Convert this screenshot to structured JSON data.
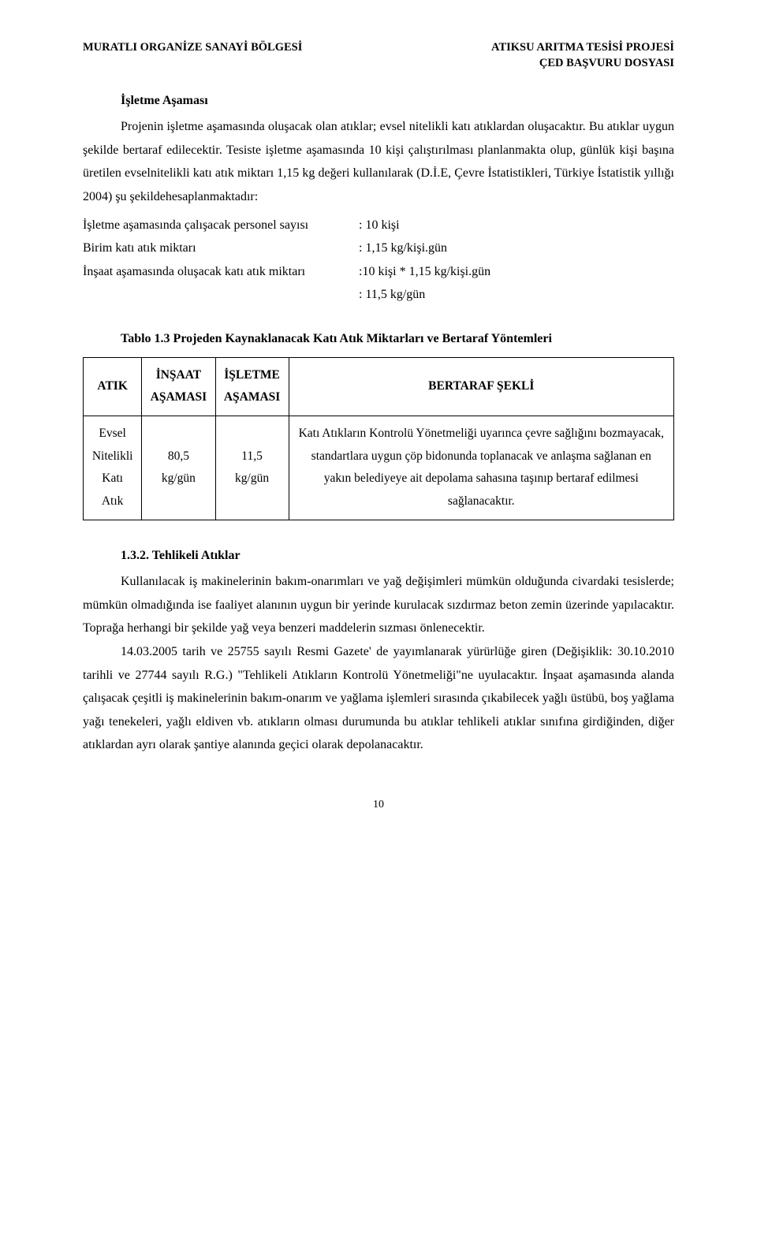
{
  "header": {
    "left": "MURATLI ORGANİZE SANAYİ BÖLGESİ",
    "right_line1": "ATIKSU ARITMA TESİSİ PROJESİ",
    "right_line2": "ÇED BAŞVURU DOSYASI"
  },
  "section1": {
    "title": "İşletme Aşaması",
    "p1": "Projenin işletme aşamasında oluşacak olan atıklar; evsel nitelikli katı atıklardan oluşacaktır. Bu atıklar uygun şekilde bertaraf edilecektir. Tesiste işletme aşamasında 10 kişi çalıştırılması planlanmakta olup, günlük kişi başına üretilen evselnitelikli katı atık miktarı 1,15 kg değeri kullanılarak (D.İ.E, Çevre İstatistikleri, Türkiye İstatistik yıllığı 2004) şu şekildehesaplanmaktadır:"
  },
  "calc": {
    "row1_label": "İşletme aşamasında çalışacak personel sayısı",
    "row1_value": ": 10 kişi",
    "row2_label": "Birim katı atık miktarı",
    "row2_value": ": 1,15 kg/kişi.gün",
    "row3_label": "İnşaat aşamasında oluşacak katı atık miktarı",
    "row3_value": ":10 kişi * 1,15 kg/kişi.gün",
    "row4_value": ": 11,5 kg/gün"
  },
  "table": {
    "caption": "Tablo 1.3 Projeden Kaynaklanacak Katı Atık Miktarları ve Bertaraf Yöntemleri",
    "columns": {
      "c1": "ATIK",
      "c2a": "İNŞAAT",
      "c2b": "AŞAMASI",
      "c3a": "İŞLETME",
      "c3b": "AŞAMASI",
      "c4": "BERTARAF ŞEKLİ"
    },
    "row": {
      "atik_l1": "Evsel",
      "atik_l2": "Nitelikli",
      "atik_l3": "Katı Atık",
      "insaat": "80,5 kg/gün",
      "isletme": "11,5 kg/gün",
      "desc": "Katı Atıkların Kontrolü Yönetmeliği uyarınca çevre sağlığını bozmayacak, standartlara uygun çöp bidonunda toplanacak ve anlaşma sağlanan en yakın belediyeye ait depolama sahasına taşınıp bertaraf edilmesi sağlanacaktır."
    }
  },
  "section2": {
    "heading": "1.3.2. Tehlikeli Atıklar",
    "p1": "Kullanılacak iş makinelerinin bakım-onarımları ve yağ değişimleri mümkün olduğunda civardaki tesislerde; mümkün olmadığında ise faaliyet alanının uygun bir yerinde kurulacak sızdırmaz beton zemin üzerinde yapılacaktır. Toprağa herhangi bir şekilde yağ veya benzeri maddelerin sızması önlenecektir.",
    "p2": "14.03.2005 tarih ve 25755 sayılı Resmi Gazete' de yayımlanarak yürürlüğe giren (Değişiklik: 30.10.2010 tarihli ve 27744 sayılı R.G.) \"Tehlikeli Atıkların Kontrolü Yönetmeliği\"ne uyulacaktır. İnşaat aşamasında alanda çalışacak çeşitli iş makinelerinin bakım-onarım ve yağlama işlemleri sırasında çıkabilecek yağlı üstübü, boş yağlama yağı tenekeleri, yağlı eldiven vb. atıkların olması durumunda bu atıklar tehlikeli atıklar sınıfına girdiğinden, diğer atıklardan ayrı olarak şantiye alanında geçici olarak depolanacaktır."
  },
  "page_number": "10"
}
